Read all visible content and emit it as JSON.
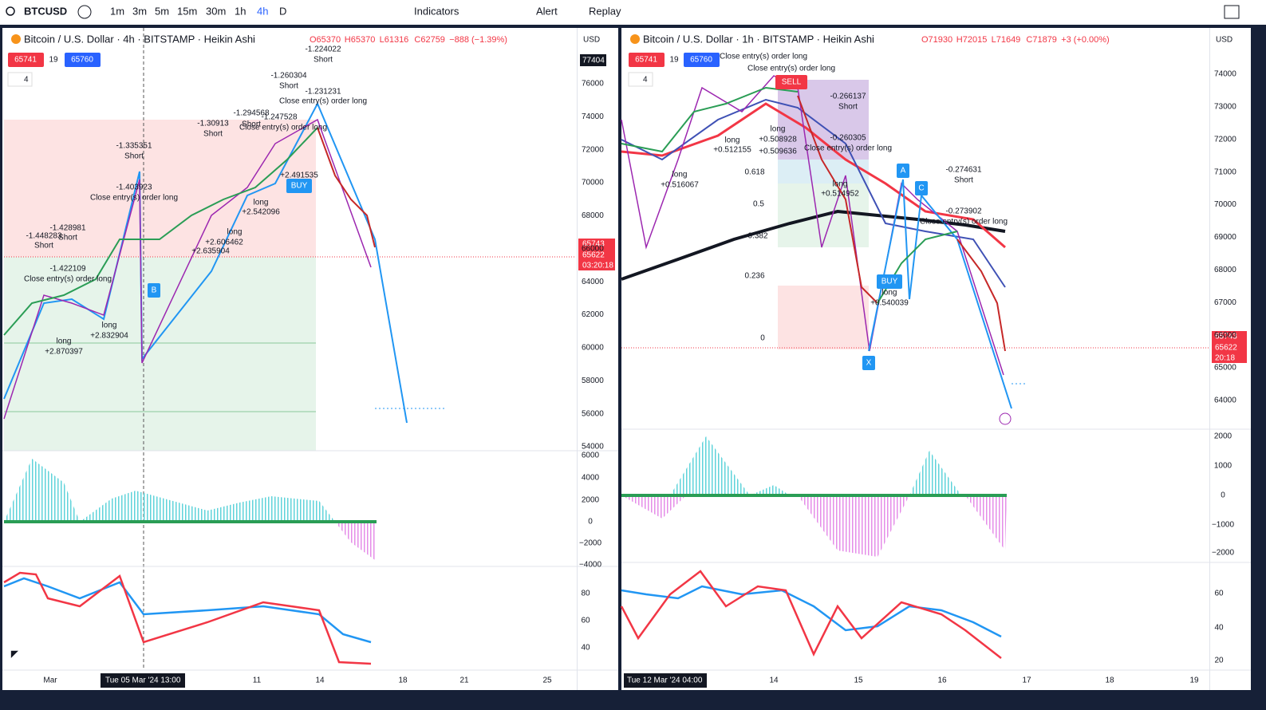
{
  "toolbar": {
    "symbol": "BTCUSD",
    "intervals": [
      "1m",
      "3m",
      "5m",
      "15m",
      "30m",
      "1h",
      "4h",
      "D"
    ],
    "indicators": "Indicators",
    "alert": "Alert",
    "replay": "Replay"
  },
  "left": {
    "header": "Bitcoin / U.S. Dollar · 4h · BITSTAMP · Heikin Ashi",
    "ohlc": [
      "O65370",
      "H65370",
      "L61316",
      "C62759",
      "−888 (−1.39%)"
    ],
    "currency": "USD",
    "sell": "65741",
    "spread": "19",
    "buy": "65760",
    "layers": "4",
    "top_tag": "77404",
    "price_tags": [
      "65743",
      "65622",
      "03:20:18"
    ],
    "price_ticks": [
      76000,
      74000,
      72000,
      70000,
      68000,
      66000,
      64000,
      62000,
      60000,
      58000,
      56000,
      54000
    ],
    "macd_ticks": [
      "6000",
      "4000",
      "2000",
      "0",
      "−2000",
      "−4000"
    ],
    "rsi_ticks": [
      "80",
      "60",
      "40"
    ],
    "date_ticks": [
      "Mar",
      "11",
      "14",
      "18",
      "21",
      "25"
    ],
    "crosshair_date": "Tue 05 Mar '24   13:00",
    "annotations": [
      "-1.224022",
      "Short",
      "-1.260304",
      "Short",
      "-1.231231",
      "Close entry(s) order long",
      "-1.294568",
      "Short",
      "-1.247528",
      "Close entry(s) order long",
      "-1.30913",
      "Short",
      "-1.335351",
      "Short",
      "-1.403923",
      "Close entry(s) order long",
      "-1.428981",
      "Short",
      "-1.448283",
      "Short",
      "-1.422109",
      "Close entry(s) order long",
      "long",
      "+2.870397",
      "+2.832904",
      "long",
      "+2.635904",
      "long",
      "+2.606462",
      "+2.542096",
      "long",
      "+2.491535",
      "BUY",
      "B"
    ]
  },
  "right": {
    "header": "Bitcoin / U.S. Dollar · 1h · BITSTAMP · Heikin Ashi",
    "ohlc": [
      "O71930",
      "H72015",
      "L71649",
      "C71879",
      "+3 (+0.00%)"
    ],
    "currency": "USD",
    "sell": "65741",
    "spread": "19",
    "buy": "65760",
    "layers": "4",
    "price_tags": [
      "65743",
      "65622",
      "20:18"
    ],
    "price_ticks": [
      74000,
      73000,
      72000,
      71000,
      70000,
      69000,
      68000,
      67000,
      66000,
      65000,
      64000
    ],
    "fib_levels": [
      "0.618",
      "0.5",
      "0.382",
      "0.236",
      "0"
    ],
    "macd_ticks": [
      "2000",
      "1000",
      "0",
      "−1000",
      "−2000"
    ],
    "rsi_ticks": [
      "60",
      "40",
      "20"
    ],
    "date_ticks": [
      "14",
      "15",
      "16",
      "17",
      "18",
      "19"
    ],
    "crosshair_date": "Tue 12 Mar '24   04:00",
    "annotations": [
      "Close entry(s) order long",
      "Close entry(s) order long",
      "-0.266137",
      "Short",
      "-0.260305",
      "Close entry(s) order long",
      "long",
      "+0.508928",
      "+0.509636",
      "long",
      "+0.512155",
      "long",
      "+0.516067",
      "long",
      "+0.514952",
      "BUY",
      "long",
      "+0.540039",
      "-0.274631",
      "Short",
      "-0.273902",
      "Close entry(s) order long",
      "SELL",
      "A",
      "C",
      "X"
    ]
  }
}
